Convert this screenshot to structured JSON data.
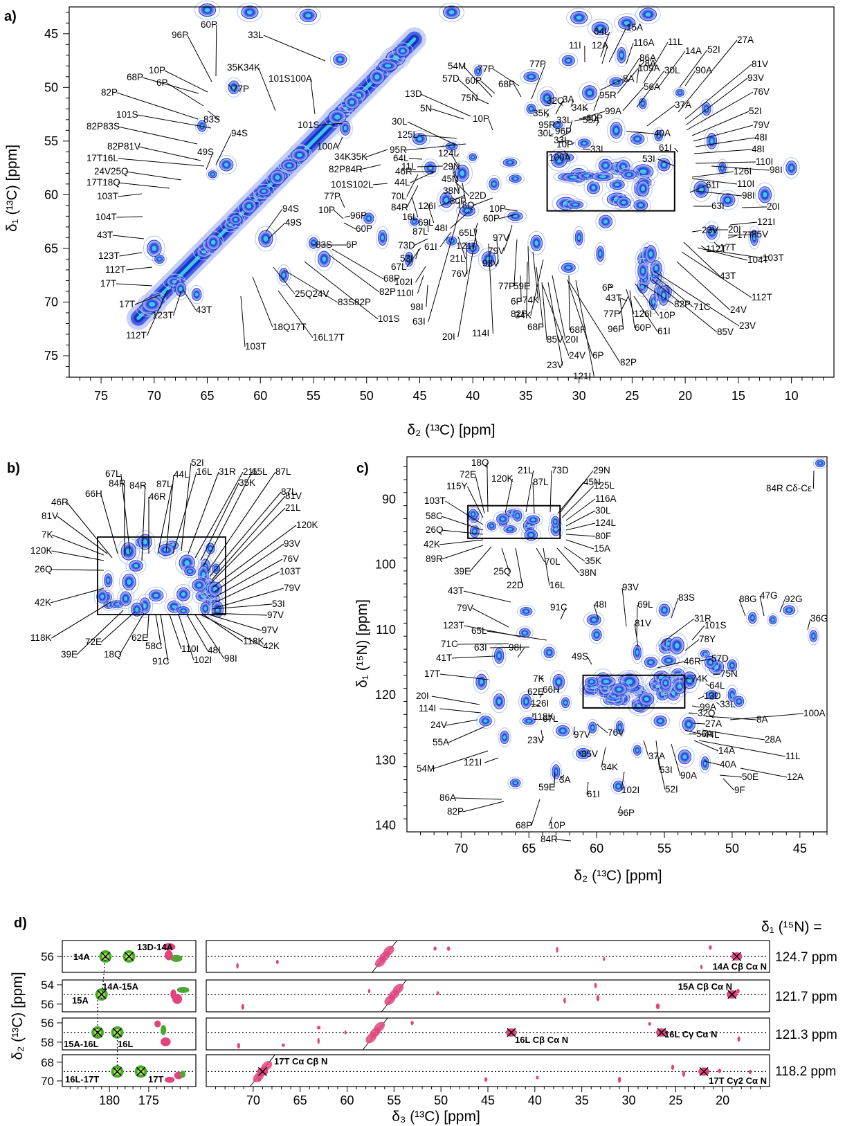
{
  "figure": {
    "colors": {
      "peak_outer": "#b9c4f2",
      "peak_mid": "#3a55e6",
      "peak_core": "#0d2ab8",
      "peak_center": "#38c8e8",
      "positive": "#e0457f",
      "positive_light": "#f4a0c0",
      "negative": "#4aa832",
      "negative_light": "#b5e04a"
    }
  },
  "chart_data": [
    {
      "panel": "a)",
      "type": "scatter",
      "xlabel": "δ₂ (¹³C) [ppm]",
      "ylabel": "δ₁ (¹³C) [ppm]",
      "xlim": [
        78,
        6
      ],
      "ylim": [
        42.5,
        77
      ],
      "xticks": [
        75,
        70,
        65,
        60,
        55,
        50,
        45,
        40,
        35,
        30,
        25,
        20,
        15,
        10
      ],
      "yticks": [
        45,
        50,
        55,
        60,
        65,
        70,
        75
      ],
      "box": {
        "x": [
          33,
          21
        ],
        "y": [
          56,
          61.5
        ]
      },
      "peaks": [
        [
          62.5,
          50
        ],
        [
          65.5,
          53.6
        ],
        [
          64.5,
          58.1
        ],
        [
          63.2,
          57.2
        ],
        [
          70,
          65
        ],
        [
          69.5,
          66
        ],
        [
          67.5,
          68.8
        ],
        [
          66,
          69.3
        ],
        [
          52,
          53.8
        ],
        [
          52.5,
          47.4
        ],
        [
          45,
          54.8
        ],
        [
          42,
          55.5
        ],
        [
          40,
          56.5
        ],
        [
          41,
          58
        ],
        [
          38,
          59
        ],
        [
          42.5,
          60.5
        ],
        [
          44,
          57.5
        ],
        [
          40.5,
          61.5
        ],
        [
          36,
          62
        ],
        [
          49.8,
          62.2
        ],
        [
          59.5,
          64.1
        ],
        [
          55,
          64.5
        ],
        [
          54,
          66
        ],
        [
          57.8,
          67.5
        ],
        [
          38.5,
          66
        ],
        [
          40,
          65
        ],
        [
          34,
          64.5
        ],
        [
          30,
          64
        ],
        [
          31,
          66.8
        ],
        [
          28,
          65.5
        ],
        [
          24,
          66
        ],
        [
          24,
          68.5
        ],
        [
          23,
          70
        ],
        [
          29,
          50.5
        ],
        [
          26.5,
          49.5
        ],
        [
          24,
          51.5
        ],
        [
          22.5,
          54.5
        ],
        [
          20.5,
          50.5
        ],
        [
          18,
          52
        ],
        [
          17.5,
          55
        ],
        [
          16.5,
          57.5
        ],
        [
          18.5,
          59.5
        ],
        [
          16,
          60.5
        ],
        [
          12.5,
          60
        ],
        [
          17.5,
          63.5
        ],
        [
          13.5,
          64
        ],
        [
          10,
          57.5
        ],
        [
          34.5,
          52
        ],
        [
          32,
          53.5
        ],
        [
          29.5,
          55.2
        ],
        [
          26.5,
          54
        ],
        [
          24.5,
          54.8
        ],
        [
          22,
          57.2
        ],
        [
          36.5,
          57
        ],
        [
          34.5,
          49
        ],
        [
          31,
          47.5
        ],
        [
          26,
          47
        ],
        [
          45.5,
          62.5
        ],
        [
          46,
          66
        ],
        [
          48.5,
          64
        ],
        [
          36,
          58.5
        ],
        [
          42,
          64.3
        ],
        [
          39.5,
          48.5
        ],
        [
          27.5,
          62.5
        ],
        [
          33,
          51
        ]
      ],
      "labels": [
        "96P",
        "60P",
        "33L",
        "68P",
        "10P",
        "6P",
        "82P",
        "35K34K",
        "101S100A",
        "77P",
        "101S",
        "83S",
        "82P83S",
        "94S",
        "82P81V",
        "17T16L",
        "49S",
        "100A",
        "101S",
        "24V25Q",
        "34K35K",
        "82P84R",
        "17T18Q",
        "103T",
        "101S102L",
        "104T",
        "77P",
        "10P",
        "96P",
        "60P",
        "94S",
        "49S",
        "43T",
        "83S",
        "6P",
        "123T",
        "112T",
        "17T",
        "17T",
        "123T",
        "43T",
        "112T",
        "103T",
        "18Q17T",
        "16L17T",
        "25Q24V",
        "83S82P",
        "101S",
        "68P",
        "82P",
        "77P",
        "68P",
        "77P",
        "54M",
        "60P",
        "57D",
        "75N",
        "13D",
        "5N",
        "10P",
        "30L",
        "125L",
        "95R",
        "11L",
        "124L",
        "29N",
        "45N",
        "38N",
        "80F",
        "22D",
        "64L",
        "46R",
        "44L",
        "70L",
        "84R",
        "16L",
        "69L",
        "87L",
        "73D",
        "53I",
        "67L",
        "102I",
        "110I",
        "98I",
        "63I",
        "20I",
        "114I",
        "121I",
        "65L",
        "48I",
        "126I",
        "61I",
        "21L",
        "76V",
        "93V",
        "97V",
        "79V",
        "18Q",
        "60P",
        "10P",
        "77P",
        "6P",
        "82P",
        "68P",
        "85V",
        "24V",
        "23V",
        "20I",
        "68P",
        "121I",
        "6P",
        "82P",
        "59E",
        "74K",
        "34K",
        "32Q",
        "35K",
        "95R",
        "30L",
        "96P",
        "33L",
        "60P",
        "33L",
        "10P",
        "100A",
        "99A",
        "3A",
        "34K",
        "95R",
        "33L",
        "55A",
        "8A",
        "109A",
        "86A",
        "116A",
        "15A",
        "12A",
        "11I",
        "64L",
        "11L",
        "30L",
        "28A",
        "56A",
        "40A",
        "37A",
        "14A",
        "52I",
        "90A",
        "27A",
        "81V",
        "93V",
        "76V",
        "52I",
        "79V",
        "48I",
        "48I",
        "110I",
        "98I",
        "53I",
        "61I",
        "126I",
        "110I",
        "98I",
        "63I",
        "61I",
        "20I",
        "121I",
        "85V",
        "20I",
        "23V",
        "112T",
        "17T",
        "17T",
        "104T",
        "103T",
        "43T",
        "112T",
        "24V",
        "23V",
        "85V",
        "71C",
        "82P",
        "10P",
        "60P",
        "126I",
        "61I",
        "96P",
        "77P",
        "43T",
        "6P"
      ]
    },
    {
      "panel": "b)",
      "type": "scatter",
      "labels": [
        "67L",
        "84R",
        "87L",
        "44L",
        "16L",
        "52I",
        "31R",
        "21L",
        "35K",
        "65L",
        "87L",
        "66H",
        "84R",
        "46R",
        "46R",
        "87L",
        "81V",
        "21L",
        "81V",
        "7K",
        "120K",
        "120K",
        "93V",
        "26Q",
        "76V",
        "103T",
        "79V",
        "53I",
        "42K",
        "97V",
        "97V",
        "118K",
        "42K",
        "39E",
        "72E",
        "18Q",
        "62E",
        "58C",
        "91C",
        "110I",
        "102I",
        "48I",
        "98I",
        "118K"
      ]
    },
    {
      "panel": "c)",
      "type": "scatter",
      "xlabel": "δ₂ (¹³C) [ppm]",
      "ylabel": "δ₁ (¹⁵N) [ppm]",
      "xlim": [
        74,
        43
      ],
      "ylim": [
        83.5,
        141
      ],
      "xticks": [
        70,
        65,
        60,
        55,
        50,
        45
      ],
      "yticks": [
        90,
        100,
        110,
        120,
        130,
        140
      ],
      "box": {
        "x": [
          61,
          53.5
        ],
        "y": [
          117,
          122
        ]
      },
      "inset_box": {
        "x": [
          69.5,
          62.7
        ],
        "y": [
          91,
          96
        ]
      },
      "peaks": [
        [
          43.5,
          84.5
        ],
        [
          65.2,
          107.2
        ],
        [
          60.2,
          108.5
        ],
        [
          60,
          110.8
        ],
        [
          55,
          107
        ],
        [
          48.5,
          108.2
        ],
        [
          47,
          108.5
        ],
        [
          45.8,
          107
        ],
        [
          44,
          111
        ],
        [
          65.3,
          110.5
        ],
        [
          63.5,
          113.5
        ],
        [
          57,
          113.5
        ],
        [
          52,
          113.7
        ],
        [
          50,
          115.5
        ],
        [
          68.5,
          118
        ],
        [
          67.2,
          121
        ],
        [
          65.2,
          121
        ],
        [
          65,
          124
        ],
        [
          68.2,
          124
        ],
        [
          66.8,
          126.5
        ],
        [
          62.3,
          121.2
        ],
        [
          60.3,
          125
        ],
        [
          61,
          129
        ],
        [
          62.5,
          125.5
        ],
        [
          58.3,
          125
        ],
        [
          57,
          128.5
        ],
        [
          58.4,
          134
        ],
        [
          55.3,
          124
        ],
        [
          53.5,
          129.5
        ],
        [
          52,
          130.5
        ],
        [
          53.2,
          124.5
        ],
        [
          51.5,
          120
        ],
        [
          50,
          120
        ],
        [
          49.5,
          121
        ],
        [
          58,
          120.5
        ],
        [
          54,
          117
        ],
        [
          56,
          115
        ],
        [
          57.5,
          118
        ],
        [
          60.5,
          119.5
        ],
        [
          66,
          133.5
        ],
        [
          63,
          131.8
        ],
        [
          67.2,
          114
        ],
        [
          62.8,
          118
        ]
      ],
      "labels": [
        "84R Cδ-Cε",
        "18Q",
        "21L",
        "73D",
        "29N",
        "72E",
        "120K",
        "87L",
        "45N",
        "125L",
        "115Y",
        "116A",
        "103T",
        "30L",
        "58C",
        "124L",
        "26Q",
        "80F",
        "42K",
        "15A",
        "89R",
        "35K",
        "39E",
        "25Q",
        "70L",
        "38N",
        "22D",
        "16L",
        "93V",
        "43T",
        "69L",
        "83S",
        "88G",
        "47G",
        "92G",
        "91C",
        "48I",
        "79V",
        "31R",
        "36G",
        "123T",
        "65L",
        "81V",
        "78Y",
        "101S",
        "71C",
        "63I",
        "98I",
        "49S",
        "57D",
        "41T",
        "46R",
        "74K",
        "64L",
        "75N",
        "17T",
        "7K",
        "66H",
        "13D",
        "32Q",
        "62E",
        "20I",
        "126I",
        "99A",
        "33L",
        "114I",
        "27A",
        "8A",
        "100A",
        "118K",
        "56A",
        "24V",
        "67L",
        "44L",
        "28A",
        "55A",
        "23V",
        "97V",
        "76V",
        "14A",
        "11L",
        "54M",
        "121I",
        "85V",
        "37A",
        "40A",
        "34K",
        "50E",
        "12A",
        "3A",
        "53I",
        "90A",
        "9F",
        "59E",
        "61I",
        "102I",
        "52I",
        "86A",
        "82P",
        "68P",
        "10P",
        "96P",
        "84R",
        "77P"
      ]
    },
    {
      "panel": "d)",
      "type": "table",
      "ylabel": "δ₂ (¹³C) [ppm]",
      "xlabel": "δ₃ (¹³C) [ppm]",
      "xlim_left": [
        186,
        169
      ],
      "xlim_right": [
        75,
        15
      ],
      "xticks_left": [
        180,
        175
      ],
      "xticks_right": [
        70,
        65,
        60,
        55,
        50,
        45,
        40,
        35,
        30,
        25,
        20
      ],
      "strips_header": "δ₁ (¹⁵N) =",
      "strips": [
        {
          "n_shift": "124.7 ppm",
          "yticks": [
            56
          ],
          "ylim": [
            54.8,
            57.2
          ],
          "trace_y": 56,
          "labels_left": [
            "14A",
            "13D-14A"
          ],
          "label_right": "14A Cβ Cα N",
          "crosses_left": [
            180.5,
            177.5
          ],
          "crosses_right": [
            18.5
          ]
        },
        {
          "n_shift": "121.7 ppm",
          "yticks": [
            54,
            56
          ],
          "ylim": [
            53.5,
            56.8
          ],
          "trace_y": 55,
          "labels_left": [
            "14A-15A",
            "15A"
          ],
          "label_right": "15A Cβ Cα N",
          "crosses_left": [
            181
          ],
          "crosses_right": [
            19
          ]
        },
        {
          "n_shift": "121.3 ppm",
          "yticks": [
            56,
            58
          ],
          "ylim": [
            55.5,
            58.8
          ],
          "trace_y": 57,
          "labels_left": [
            "15A-16L",
            "16L"
          ],
          "label_right_a": "16L Cβ Cα N",
          "label_right_b": "16L Cγ Cα N",
          "crosses_left": [
            181.5,
            179
          ],
          "crosses_right": [
            42.5,
            26.5
          ]
        },
        {
          "n_shift": "118.2 ppm",
          "yticks": [
            68,
            70
          ],
          "ylim": [
            67.2,
            70.6
          ],
          "trace_y": 69,
          "labels_left": [
            "16L-17T",
            "17T"
          ],
          "label_right_a": "17T Cα Cβ N",
          "label_right_b": "17T Cγ2 Cα N",
          "crosses_left": [
            179,
            176
          ],
          "crosses_right": [
            69,
            22
          ]
        }
      ]
    }
  ]
}
